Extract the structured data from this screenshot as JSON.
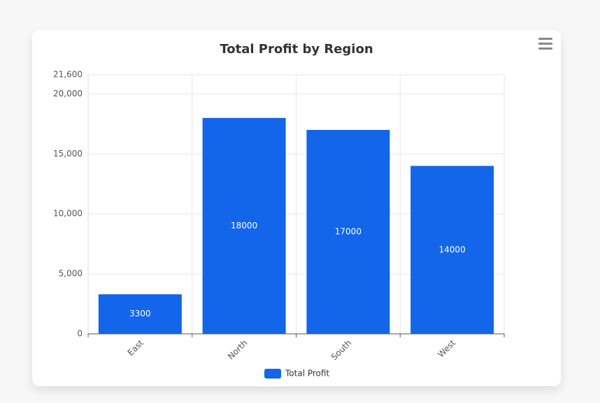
{
  "chart_data": {
    "type": "bar",
    "title": "Total Profit by Region",
    "categories": [
      "East",
      "North",
      "South",
      "West"
    ],
    "series": [
      {
        "name": "Total Profit",
        "color": "#1366e9",
        "values": [
          3300,
          18000,
          17000,
          14000
        ]
      }
    ],
    "ylim": [
      0,
      21600
    ],
    "yticks": [
      0,
      {
        "value": 5000,
        "label": "5,000"
      },
      {
        "value": 10000,
        "label": "10,000"
      },
      {
        "value": 15000,
        "label": "15,000"
      },
      {
        "value": 20000,
        "label": "20,000"
      },
      {
        "value": 21600,
        "label": "21,600"
      }
    ],
    "grid": true
  }
}
